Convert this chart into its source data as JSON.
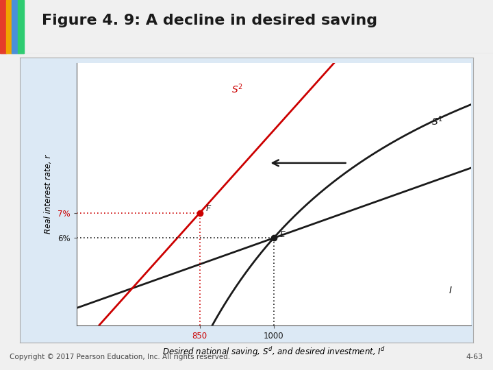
{
  "title": "Figure 4. 9: A decline in desired saving",
  "title_fontsize": 16,
  "title_fontweight": "bold",
  "xlabel": "Desired national saving, $S^d$, and desired investment, $I^d$",
  "ylabel": "Real interest rate, r",
  "background_color": "#f0f0f0",
  "panel_bg": "#dce9f5",
  "inner_bg": "#ffffff",
  "xlim": [
    600,
    1400
  ],
  "ylim": [
    2.5,
    13
  ],
  "x_ticks": [
    850,
    1000
  ],
  "y_ticks": [
    6,
    7
  ],
  "point_F": [
    850,
    7
  ],
  "point_E": [
    1000,
    6
  ],
  "S1_color": "#1a1a1a",
  "S2_color": "#cc0000",
  "I_color": "#1a1a1a",
  "arrow_color": "#1a1a1a",
  "dotted_F_color": "#cc0000",
  "dotted_E_color": "#1a1a1a",
  "copyright_text": "Copyright © 2017 Pearson Education, Inc. All rights reserved.",
  "page_num": "4-63"
}
